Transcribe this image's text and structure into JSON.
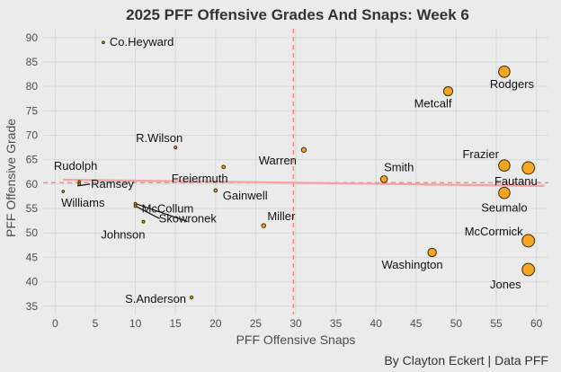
{
  "chart_data": {
    "type": "scatter",
    "title": "2025 PFF Offensive Grades And Snaps: Week 6",
    "xlabel": "PFF Offensive Snaps",
    "ylabel": "PFF Offensive Grade",
    "caption": "By Clayton Eckert | Data PFF",
    "xlim": [
      -1.5,
      61.5
    ],
    "ylim": [
      33.3,
      91.8
    ],
    "xticks": [
      0,
      5,
      10,
      15,
      20,
      25,
      30,
      35,
      40,
      45,
      50,
      55,
      60
    ],
    "yticks": [
      35,
      40,
      45,
      50,
      55,
      60,
      65,
      70,
      75,
      80,
      85,
      90
    ],
    "reference_lines": {
      "x_mean": 29.7,
      "y_mean": 60.3
    },
    "trend_line": {
      "x": [
        1,
        61
      ],
      "y": [
        60.9,
        59.6
      ]
    },
    "points": [
      {
        "name": "Co.Heyward",
        "x": 6,
        "y": 89.0
      },
      {
        "name": "Rodgers",
        "x": 56,
        "y": 83.0
      },
      {
        "name": "Metcalf",
        "x": 49,
        "y": 79.0
      },
      {
        "name": "R.Wilson",
        "x": 15,
        "y": 67.5
      },
      {
        "name": "Warren",
        "x": 31,
        "y": 67.0
      },
      {
        "name": "Frazier",
        "x": 56,
        "y": 63.8
      },
      {
        "name": "Fautanu",
        "x": 59,
        "y": 63.3
      },
      {
        "name": "Freiermuth",
        "x": 21,
        "y": 63.5
      },
      {
        "name": "Smith",
        "x": 41,
        "y": 61.0
      },
      {
        "name": "Rudolph",
        "x": 3,
        "y": 60.5
      },
      {
        "name": "Ramsey",
        "x": 3,
        "y": 60.0
      },
      {
        "name": "Williams",
        "x": 1,
        "y": 58.5
      },
      {
        "name": "Gainwell",
        "x": 20,
        "y": 58.7
      },
      {
        "name": "Seumalo",
        "x": 56,
        "y": 58.2
      },
      {
        "name": "McCollum",
        "x": 10,
        "y": 56.0
      },
      {
        "name": "Skowronek",
        "x": 10,
        "y": 55.5
      },
      {
        "name": "Johnson",
        "x": 11,
        "y": 52.3
      },
      {
        "name": "Miller",
        "x": 26,
        "y": 51.5
      },
      {
        "name": "McCormick",
        "x": 59,
        "y": 48.4
      },
      {
        "name": "Washington",
        "x": 47,
        "y": 46.0
      },
      {
        "name": "Jones",
        "x": 59,
        "y": 42.5
      },
      {
        "name": "S.Anderson",
        "x": 17,
        "y": 36.8
      }
    ]
  }
}
